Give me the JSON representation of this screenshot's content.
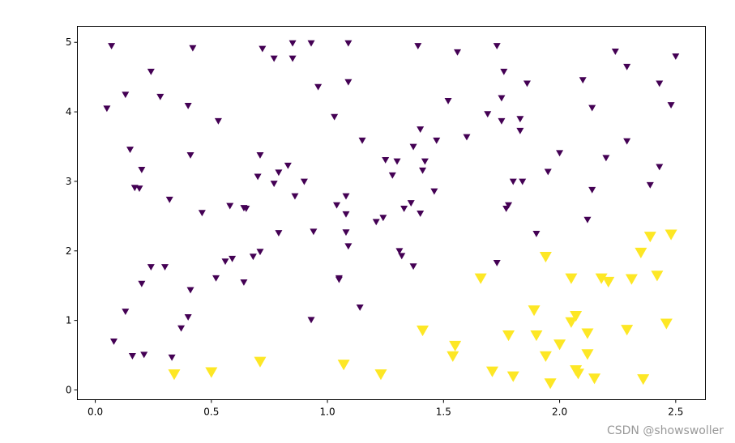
{
  "chart_data": {
    "type": "scatter",
    "marker": "triangle-down",
    "xlim": [
      -0.077,
      2.628
    ],
    "ylim": [
      -0.14,
      5.23
    ],
    "xticks": [
      {
        "value": 0,
        "label": "0.0"
      },
      0.5,
      {
        "value": 1,
        "label": "1.0"
      },
      1.5,
      {
        "value": 2,
        "label": "2.0"
      },
      2.5
    ],
    "yticks": [
      0,
      1,
      2,
      3,
      4,
      5
    ],
    "series": [
      {
        "color": "#440154",
        "x": [
          0.07,
          0.05,
          0.13,
          0.24,
          0.28,
          0.42,
          0.4,
          0.53,
          0.15,
          0.41,
          0.2,
          0.17,
          0.19,
          0.32,
          0.46,
          0.24,
          0.3,
          0.2,
          0.41,
          0.13,
          0.4,
          0.37,
          0.08,
          0.16,
          0.21,
          0.33,
          0.52,
          0.56,
          0.59,
          0.58,
          0.64,
          0.65,
          0.64,
          0.68,
          0.71,
          0.7,
          0.71,
          0.72,
          0.77,
          0.85,
          0.85,
          0.93,
          0.77,
          0.79,
          0.83,
          0.79,
          0.86,
          0.9,
          0.96,
          0.94,
          0.93,
          1.09,
          1.09,
          1.03,
          1.15,
          1.04,
          1.08,
          1.08,
          1.08,
          1.09,
          1.05,
          1.05,
          1.14,
          1.25,
          1.3,
          1.28,
          1.24,
          1.21,
          1.33,
          1.36,
          1.4,
          1.31,
          1.32,
          1.37,
          1.39,
          1.52,
          1.56,
          1.4,
          1.37,
          1.47,
          1.42,
          1.41,
          1.46,
          1.6,
          1.73,
          1.76,
          1.75,
          1.69,
          1.75,
          1.86,
          1.83,
          1.83,
          1.78,
          1.77,
          1.8,
          1.84,
          1.73,
          1.9,
          2.0,
          1.95,
          2.1,
          2.14,
          2.2,
          2.14,
          2.12,
          2.24,
          2.29,
          2.29,
          2.43,
          2.48,
          2.5,
          2.43,
          2.39
        ],
        "values": [
          4.95,
          4.05,
          4.25,
          4.58,
          4.22,
          4.92,
          4.09,
          3.87,
          3.46,
          3.38,
          3.17,
          2.91,
          2.9,
          2.74,
          2.55,
          1.77,
          1.77,
          1.53,
          1.44,
          1.13,
          1.05,
          0.89,
          0.7,
          0.49,
          0.51,
          0.47,
          1.61,
          1.85,
          1.89,
          2.65,
          2.62,
          2.61,
          1.55,
          1.92,
          1.99,
          3.07,
          3.38,
          4.91,
          4.77,
          4.99,
          4.77,
          4.99,
          2.97,
          3.13,
          3.23,
          2.26,
          2.79,
          3.0,
          4.36,
          2.28,
          1.01,
          4.99,
          4.43,
          3.93,
          3.59,
          2.66,
          2.79,
          2.53,
          2.27,
          2.07,
          1.61,
          1.59,
          1.19,
          3.31,
          3.29,
          3.09,
          2.48,
          2.42,
          2.61,
          2.69,
          2.54,
          2.0,
          1.93,
          1.78,
          4.95,
          4.16,
          4.86,
          3.75,
          3.5,
          3.59,
          3.29,
          3.16,
          2.86,
          3.64,
          4.95,
          4.58,
          4.2,
          3.97,
          3.87,
          4.41,
          3.9,
          3.73,
          2.66,
          2.61,
          3.0,
          3.0,
          1.83,
          2.25,
          3.41,
          3.14,
          4.46,
          4.06,
          3.34,
          2.88,
          2.45,
          4.87,
          4.65,
          3.58,
          4.41,
          4.1,
          4.8,
          3.21,
          2.95
        ]
      },
      {
        "color": "#fde725",
        "x": [
          0.34,
          0.5,
          0.71,
          1.07,
          1.23,
          1.41,
          1.55,
          1.54,
          1.66,
          1.71,
          1.78,
          1.8,
          1.89,
          1.9,
          1.94,
          1.94,
          1.96,
          2.0,
          2.05,
          2.05,
          2.07,
          2.07,
          2.08,
          2.12,
          2.12,
          2.15,
          2.18,
          2.21,
          2.31,
          2.29,
          2.35,
          2.36,
          2.39,
          2.42,
          2.46,
          2.48
        ],
        "values": [
          0.23,
          0.26,
          0.41,
          0.37,
          0.23,
          0.86,
          0.64,
          0.49,
          1.61,
          0.27,
          0.79,
          0.2,
          1.15,
          0.79,
          1.92,
          0.49,
          0.1,
          0.66,
          1.61,
          0.98,
          1.07,
          0.29,
          0.24,
          0.82,
          0.52,
          0.17,
          1.61,
          1.56,
          1.6,
          0.87,
          1.98,
          0.16,
          2.21,
          1.65,
          0.96,
          2.24
        ]
      }
    ],
    "watermark": "CSDN @showswoller"
  }
}
